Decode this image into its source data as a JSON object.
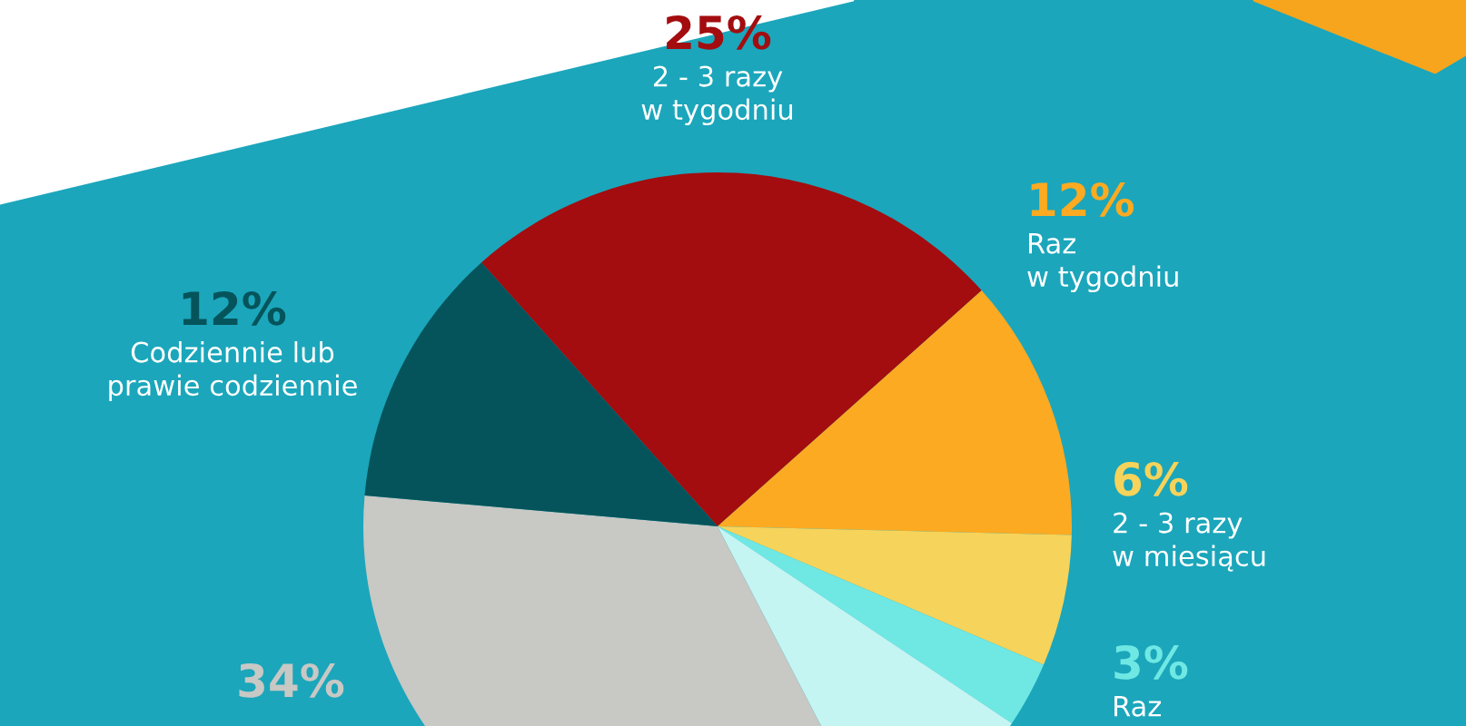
{
  "chart_data": {
    "type": "pie",
    "categories": [
      "2 - 3 razy\nw tygodniu",
      "Raz\nw tygodniu",
      "2 - 3 razy\nw miesiącu",
      "Raz",
      null,
      null,
      "Codziennie lub\nprawie codziennie"
    ],
    "values": [
      25,
      12,
      6,
      3,
      8,
      34,
      12
    ],
    "value_labels": [
      "25%",
      "12%",
      "6%",
      "3%",
      null,
      "34%",
      "12%"
    ],
    "colors": [
      "#a30d0f",
      "#fbaa22",
      "#f6d35a",
      "#6fe8e4",
      "#c4f5f2",
      "#c8c8c4",
      "#05545b"
    ],
    "legend": false
  }
}
